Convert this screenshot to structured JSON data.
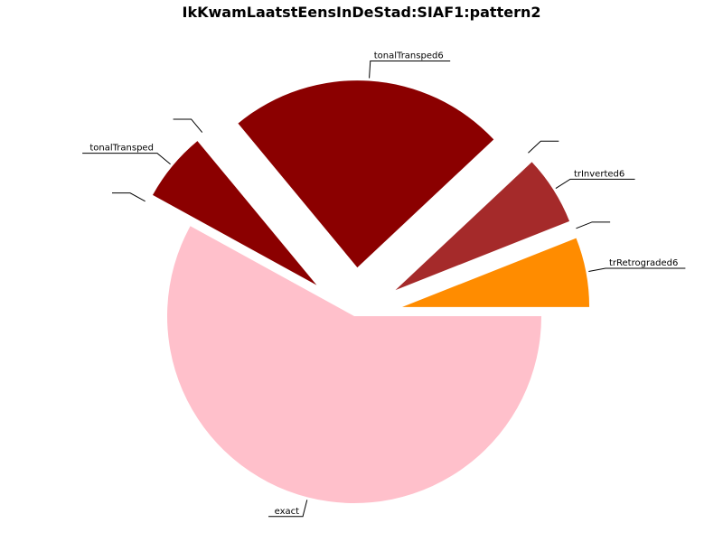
{
  "chart_data": {
    "type": "pie",
    "title": "IkKwamLaatstEensInDeStad:SIAF1:pattern2",
    "slices": [
      {
        "label": "trRetrograded6",
        "value": 6,
        "color": "#ff8c00",
        "exploded": true
      },
      {
        "label": "",
        "value": 0,
        "color": "#ff8c00",
        "exploded": true
      },
      {
        "label": "trInverted6",
        "value": 6,
        "color": "#a52a2a",
        "exploded": true
      },
      {
        "label": "",
        "value": 0,
        "color": "#a52a2a",
        "exploded": true
      },
      {
        "label": "tonalTransped6",
        "value": 24,
        "color": "#8b0000",
        "exploded": true
      },
      {
        "label": "",
        "value": 0,
        "color": "#8b0000",
        "exploded": true
      },
      {
        "label": "tonalTransped",
        "value": 6,
        "color": "#8b0000",
        "exploded": true
      },
      {
        "label": "",
        "value": 0,
        "color": "#8b0000",
        "exploded": true
      },
      {
        "label": "exact",
        "value": 58,
        "color": "#ffc0cb",
        "exploded": false
      }
    ]
  }
}
